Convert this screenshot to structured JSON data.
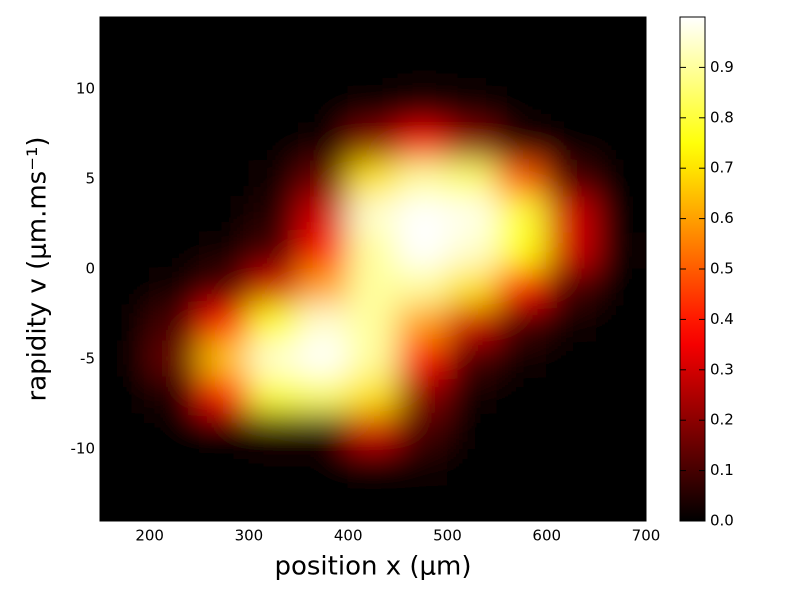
{
  "chart_data": {
    "type": "heatmap",
    "colormap": "hot",
    "xlabel": "position x (μm)",
    "ylabel": "rapidity v (μm.ms⁻¹)",
    "xlim": [
      150,
      700
    ],
    "ylim": [
      -14,
      14
    ],
    "clim": [
      0,
      1
    ],
    "xticks": [
      200,
      300,
      400,
      500,
      600,
      700
    ],
    "yticks": [
      -10,
      -5,
      0,
      5,
      10
    ],
    "cticks": [
      {
        "value": 0,
        "label": "0.0"
      },
      0.1,
      0.2,
      0.3,
      0.4,
      0.5,
      0.6,
      0.7,
      0.8,
      0.9
    ],
    "x": [
      175,
      225,
      275,
      325,
      375,
      425,
      475,
      525,
      575,
      625,
      675
    ],
    "y": [
      13,
      11,
      9,
      7,
      5,
      3,
      1,
      -1,
      -3,
      -5,
      -7,
      -9,
      -11,
      -13
    ],
    "z": [
      [
        0,
        0,
        0,
        0,
        0,
        0,
        0,
        0,
        0,
        0,
        0
      ],
      [
        0,
        0,
        0,
        0,
        0,
        0,
        0,
        0,
        0,
        0,
        0
      ],
      [
        0,
        0,
        0,
        0,
        0,
        0.02,
        0.05,
        0.03,
        0,
        0,
        0
      ],
      [
        0,
        0,
        0,
        0,
        0.02,
        0.2,
        0.35,
        0.2,
        0.05,
        0,
        0
      ],
      [
        0,
        0,
        0,
        0.02,
        0.15,
        0.7,
        0.9,
        0.85,
        0.5,
        0.1,
        0
      ],
      [
        0,
        0,
        0,
        0.05,
        0.3,
        0.95,
        1,
        0.98,
        0.8,
        0.3,
        0
      ],
      [
        0,
        0,
        0.02,
        0.1,
        0.4,
        0.9,
        1,
        0.95,
        0.75,
        0.3,
        0.02
      ],
      [
        0,
        0.02,
        0.1,
        0.3,
        0.6,
        0.9,
        0.9,
        0.7,
        0.4,
        0.1,
        0
      ],
      [
        0,
        0.1,
        0.4,
        0.75,
        0.95,
        0.9,
        0.6,
        0.3,
        0.1,
        0.02,
        0
      ],
      [
        0,
        0.15,
        0.65,
        0.95,
        1,
        0.9,
        0.4,
        0.1,
        0.02,
        0,
        0
      ],
      [
        0,
        0.05,
        0.4,
        0.8,
        0.85,
        0.7,
        0.2,
        0.02,
        0,
        0,
        0
      ],
      [
        0,
        0,
        0.02,
        0.05,
        0.05,
        0.3,
        0.1,
        0,
        0,
        0,
        0
      ],
      [
        0,
        0,
        0,
        0,
        0,
        0.02,
        0.02,
        0,
        0,
        0,
        0
      ],
      [
        0,
        0,
        0,
        0,
        0,
        0,
        0,
        0,
        0,
        0,
        0
      ]
    ]
  }
}
